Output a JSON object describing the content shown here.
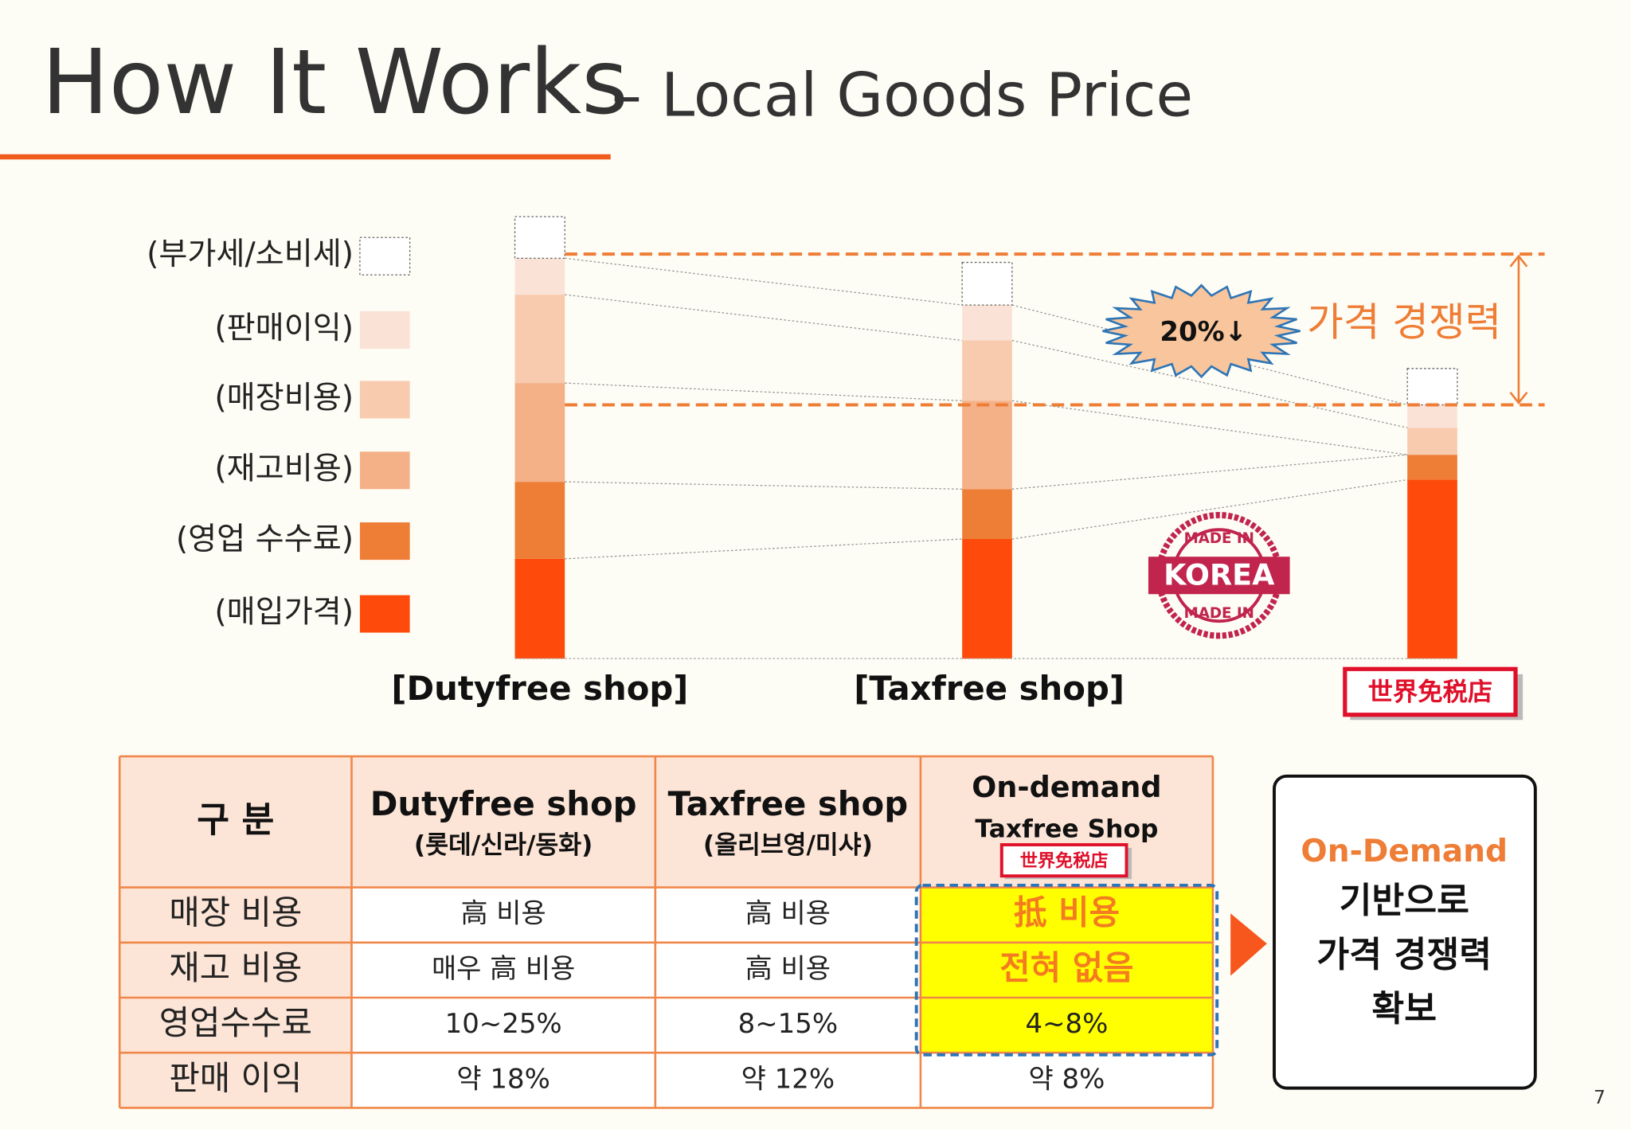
{
  "header": {
    "title": "How It Works",
    "subtitle": "– Local Goods Price"
  },
  "chart_data": {
    "type": "bar",
    "stacked": true,
    "categories": [
      "[Dutyfree shop]",
      "[Taxfree shop]",
      "世界免税店"
    ],
    "series": [
      {
        "name": "(매입가격)",
        "color": "#fe4a0a",
        "values": [
          96,
          115,
          172
        ]
      },
      {
        "name": "(영업 수수료)",
        "color": "#ee7d36",
        "values": [
          74,
          48,
          24
        ]
      },
      {
        "name": "(재고비용)",
        "color": "#f4b087",
        "values": [
          95,
          85,
          0
        ]
      },
      {
        "name": "(매장비용)",
        "color": "#f8caae",
        "values": [
          85,
          58,
          26
        ]
      },
      {
        "name": "(판매이익)",
        "color": "#fbe2d7",
        "values": [
          35,
          34,
          22
        ]
      },
      {
        "name": "(부가세/소비세)",
        "color": "#ffffff",
        "values": [
          40,
          41,
          35
        ]
      }
    ],
    "ylim": [
      0,
      450
    ],
    "annotations": [
      "20%↓",
      "가격 경쟁력"
    ],
    "stamp": [
      "MADE IN",
      "KOREA",
      "MADE IN"
    ]
  },
  "table": {
    "columns": [
      {
        "title": "구 분"
      },
      {
        "title": "Dutyfree shop",
        "subtitle": "(롯데/신라/동화)"
      },
      {
        "title": "Taxfree shop",
        "subtitle": "(올리브영/미샤)"
      },
      {
        "title": "On-demand",
        "subtitle": "Taxfree Shop",
        "logo": "世界免税店"
      }
    ],
    "rows": [
      [
        "매장 비용",
        "高 비용",
        "高 비용",
        "抵 비용"
      ],
      [
        "재고 비용",
        "매우 高 비용",
        "高 비용",
        "전혀 없음"
      ],
      [
        "영업수수료",
        "10~25%",
        "8~15%",
        "4~8%"
      ],
      [
        "판매 이익",
        "약 18%",
        "약 12%",
        "약 8%"
      ]
    ]
  },
  "callout": {
    "title": "On-Demand",
    "lines": [
      "기반으로",
      "가격 경쟁력",
      "확보"
    ]
  },
  "page_number": "7"
}
